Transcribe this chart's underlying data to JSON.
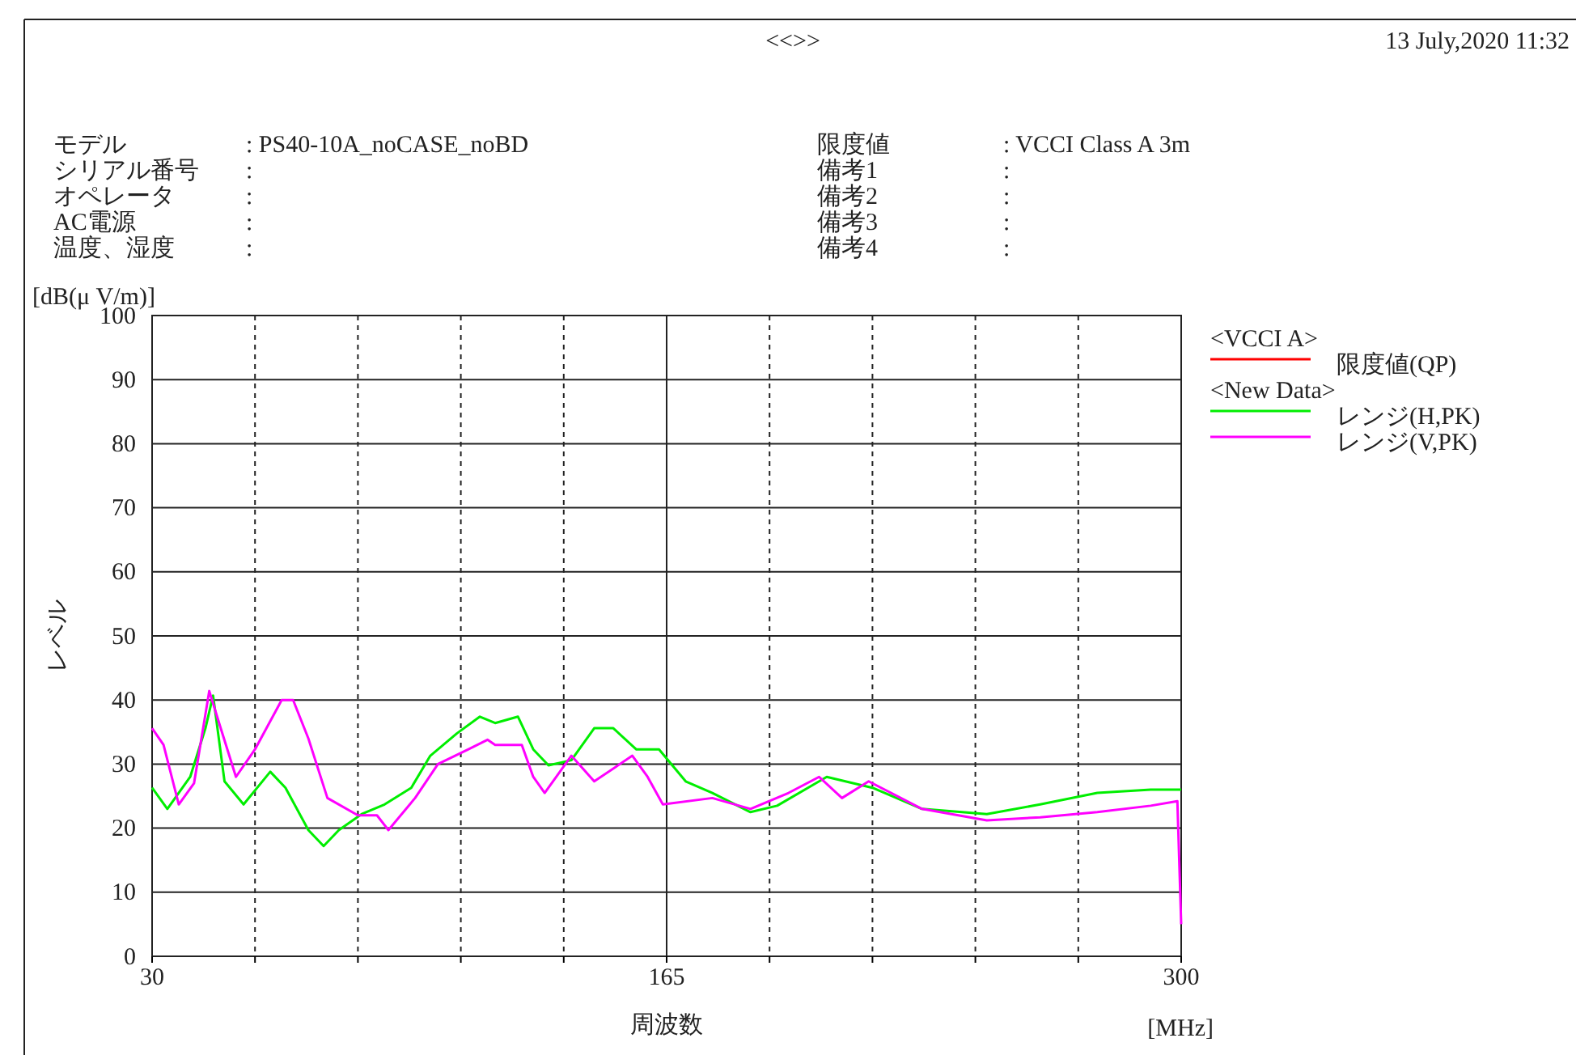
{
  "chart_data": {
    "type": "line",
    "title": "<<>>",
    "xlabel": "周波数",
    "ylabel": "レベル",
    "annotations": [
      "モデル",
      "シリアル番号",
      "オペレータ",
      "AC電源",
      "温度、湿度",
      ": PS40-10A_noCASE_noBD",
      ":",
      ":",
      ":",
      ":",
      "限度値",
      "備考1",
      "備考2",
      "備考3",
      "備考4",
      ": VCCI Class A 3m",
      ":",
      ":",
      ":",
      ":",
      "13 July,2020 11:32",
      "<VCCI A>",
      "<New Data>",
      "[dB(μ V/m)]",
      "[MHz]"
    ],
    "xlim": [
      30,
      300
    ],
    "ylim": [
      0,
      100
    ],
    "xticks": [
      30,
      {
        "value": 57,
        "label": null
      },
      {
        "value": 84,
        "label": null
      },
      {
        "value": 111,
        "label": null
      },
      {
        "value": 138,
        "label": null
      },
      165,
      {
        "value": 192,
        "label": null
      },
      {
        "value": 219,
        "label": null
      },
      {
        "value": 246,
        "label": null
      },
      {
        "value": 273,
        "label": null
      },
      300
    ],
    "yticks": [
      0,
      10,
      20,
      30,
      40,
      50,
      60,
      70,
      80,
      90,
      100
    ],
    "grid": true,
    "legend": "right",
    "marker": "none",
    "line_style": "solid",
    "series": [
      {
        "name": "限度値(QP)",
        "color": "#ff0000"
      },
      {
        "name": "レンジ(H,PK)",
        "color": "#00ee00",
        "x": [
          30,
          34,
          40,
          44,
          46,
          49,
          54,
          61,
          65,
          71,
          75,
          79,
          85,
          91,
          98,
          103,
          110,
          116,
          120,
          126,
          130,
          134,
          140,
          146,
          151,
          157,
          163,
          170,
          177,
          187,
          194,
          205,
          207,
          219,
          232,
          249,
          263,
          278,
          292,
          300
        ],
        "values": [
          26.3,
          23,
          28,
          35.6,
          40.7,
          27.3,
          23.7,
          28.8,
          26.3,
          19.7,
          17.2,
          19.7,
          22.2,
          23.7,
          26.3,
          31.3,
          34.8,
          37.4,
          36.4,
          37.4,
          32.3,
          29.8,
          30.6,
          35.6,
          35.6,
          32.3,
          32.3,
          27.3,
          25.5,
          22.5,
          23.5,
          27.3,
          28,
          26.3,
          23,
          22.2,
          23.7,
          25.5,
          26,
          26
        ]
      },
      {
        "name": "レンジ(V,PK)",
        "color": "#ff00ff",
        "x": [
          30,
          33,
          37,
          41,
          45,
          48,
          52,
          57,
          64,
          67,
          71,
          76,
          84,
          89,
          92,
          99,
          105,
          113,
          118,
          120,
          127,
          130,
          133,
          140,
          146,
          156,
          160,
          164,
          177,
          187,
          197,
          205,
          211,
          218,
          232,
          249,
          263,
          278,
          292,
          299,
          300
        ],
        "values": [
          35.6,
          33,
          23.7,
          27,
          41.4,
          35.6,
          28,
          32.3,
          40,
          40,
          34,
          24.7,
          22,
          22,
          19.7,
          24.7,
          30,
          32.3,
          33.8,
          33,
          33,
          28,
          25.5,
          31.3,
          27.3,
          31.3,
          28,
          23.7,
          24.7,
          23,
          25.5,
          28,
          24.7,
          27.3,
          23,
          21.2,
          21.7,
          22.5,
          23.5,
          24.2,
          5
        ]
      }
    ]
  }
}
